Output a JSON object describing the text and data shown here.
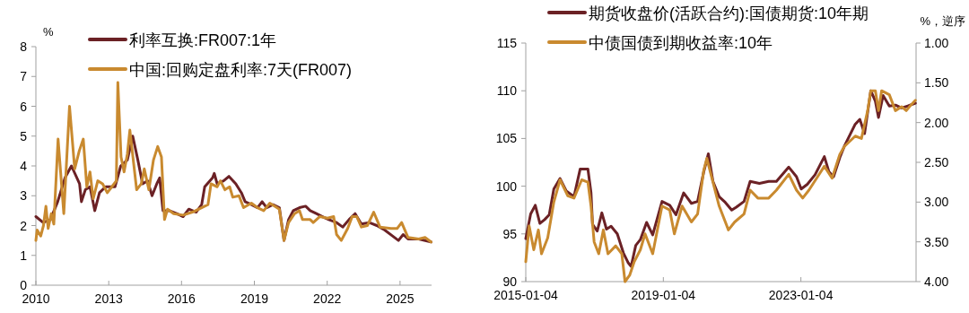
{
  "chart_data": [
    {
      "type": "line",
      "ylabel": "%",
      "legend": "top left",
      "xlim": [
        "2010-01-01",
        "2026-04-20"
      ],
      "xticks": [
        {
          "value": "2010-01-01",
          "label": "2010"
        },
        {
          "value": "2013-01-01",
          "label": "2013"
        },
        {
          "value": "2016-01-01",
          "label": "2016"
        },
        {
          "value": "2019-01-01",
          "label": "2019"
        },
        {
          "value": "2022-01-01",
          "label": "2022"
        },
        {
          "value": "2025-01-01",
          "label": "2025"
        }
      ],
      "ylim": [
        0,
        8
      ],
      "yticks": [
        0,
        1,
        2,
        3,
        4,
        5,
        6,
        7,
        8
      ],
      "series": [
        {
          "name": "利率互换:FR007:1年",
          "color": "#6b2125",
          "x": [
            "2010-01-01",
            "2010-04-20",
            "2010-08-08",
            "2010-11-25",
            "2011-03-15",
            "2011-06-20",
            "2011-10-20",
            "2011-11-17",
            "2012-01-15",
            "2012-03-25",
            "2012-06-05",
            "2012-08-15",
            "2012-11-15",
            "2013-04-05",
            "2013-07-01",
            "2013-10-08",
            "2013-12-28",
            "2014-03-15",
            "2014-05-25",
            "2014-08-08",
            "2014-10-15",
            "2014-12-25",
            "2015-02-06",
            "2015-03-28",
            "2015-07-01",
            "2015-10-20",
            "2016-01-25",
            "2016-04-20",
            "2016-08-08",
            "2016-10-30",
            "2016-12-15",
            "2017-04-12",
            "2017-05-08",
            "2017-06-20",
            "2017-09-25",
            "2017-12-15",
            "2018-03-28",
            "2018-06-20",
            "2018-08-15",
            "2018-11-17",
            "2019-02-17",
            "2019-04-28",
            "2019-07-05",
            "2019-10-08",
            "2020-01-12",
            "2020-03-22",
            "2020-05-30",
            "2020-08-08",
            "2020-11-10",
            "2021-02-10",
            "2021-04-20",
            "2021-07-22",
            "2021-10-22",
            "2022-01-25",
            "2022-05-22",
            "2022-08-22",
            "2022-11-25",
            "2023-02-25",
            "2023-05-30",
            "2023-09-25",
            "2024-01-18",
            "2024-05-15",
            "2024-09-10",
            "2024-12-08",
            "2025-02-17",
            "2025-05-01",
            "2025-10-08",
            "2026-04-12"
          ],
          "values": [
            2.3,
            2.1,
            2.2,
            2.8,
            3.6,
            4.0,
            3.4,
            2.8,
            3.2,
            3.3,
            2.5,
            3.1,
            3.3,
            3.3,
            4.0,
            4.2,
            5.0,
            4.2,
            3.4,
            3.5,
            3.0,
            3.4,
            3.6,
            2.5,
            2.5,
            2.4,
            2.3,
            2.55,
            2.45,
            2.7,
            3.3,
            3.6,
            3.75,
            3.4,
            3.5,
            3.65,
            3.4,
            3.1,
            2.8,
            2.7,
            2.6,
            2.8,
            2.6,
            2.7,
            2.6,
            1.5,
            2.2,
            2.5,
            2.6,
            2.65,
            2.5,
            2.4,
            2.3,
            2.2,
            2.1,
            1.95,
            2.2,
            2.4,
            2.05,
            2.1,
            2.0,
            1.85,
            1.65,
            1.5,
            1.7,
            1.55,
            1.55,
            1.45
          ]
        },
        {
          "name": "中国:回购定盘利率:7天(FR007)",
          "color": "#c98a2f",
          "x": [
            "2010-01-01",
            "2010-01-20",
            "2010-03-15",
            "2010-04-25",
            "2010-06-01",
            "2010-07-05",
            "2010-08-20",
            "2010-09-28",
            "2010-12-01",
            "2011-02-25",
            "2011-05-22",
            "2011-08-08",
            "2011-10-15",
            "2011-12-15",
            "2012-02-06",
            "2012-03-25",
            "2012-05-12",
            "2012-07-20",
            "2012-10-01",
            "2012-12-10",
            "2013-02-17",
            "2013-04-25",
            "2013-05-18",
            "2013-07-05",
            "2013-08-20",
            "2013-10-08",
            "2013-11-15",
            "2014-02-25",
            "2014-05-05",
            "2014-06-20",
            "2014-08-28",
            "2014-11-05",
            "2015-01-08",
            "2015-03-05",
            "2015-04-20",
            "2015-06-05",
            "2015-09-05",
            "2016-01-25",
            "2016-06-12",
            "2016-10-30",
            "2017-02-02",
            "2017-03-20",
            "2017-06-20",
            "2017-08-08",
            "2017-10-15",
            "2017-12-25",
            "2018-02-10",
            "2018-05-15",
            "2018-07-22",
            "2018-11-17",
            "2019-02-17",
            "2019-05-22",
            "2019-08-22",
            "2020-01-12",
            "2020-03-22",
            "2020-05-30",
            "2020-08-28",
            "2020-11-10",
            "2020-12-25",
            "2021-04-20",
            "2021-06-05",
            "2021-09-10",
            "2022-01-05",
            "2022-04-08",
            "2022-05-22",
            "2022-08-01",
            "2022-11-05",
            "2023-01-12",
            "2023-03-22",
            "2023-05-30",
            "2023-08-28",
            "2023-12-01",
            "2024-03-05",
            "2024-08-18",
            "2024-11-17",
            "2025-01-25",
            "2025-05-01",
            "2025-10-08",
            "2026-01-12",
            "2026-04-12"
          ],
          "values": [
            1.5,
            1.85,
            1.65,
            2.0,
            2.65,
            1.9,
            2.4,
            2.05,
            4.9,
            2.4,
            6.0,
            3.9,
            4.5,
            4.9,
            3.3,
            3.8,
            2.9,
            3.5,
            3.4,
            3.1,
            3.3,
            3.5,
            6.8,
            4.3,
            3.8,
            4.4,
            5.2,
            3.2,
            3.4,
            3.9,
            3.2,
            4.2,
            4.65,
            4.3,
            2.2,
            2.55,
            2.4,
            2.35,
            2.45,
            2.6,
            2.7,
            3.4,
            3.3,
            3.5,
            3.2,
            3.3,
            2.95,
            3.0,
            2.6,
            2.75,
            2.6,
            2.5,
            2.75,
            2.55,
            1.5,
            2.1,
            2.4,
            2.5,
            2.2,
            2.2,
            2.1,
            2.3,
            2.25,
            2.3,
            1.7,
            1.5,
            1.9,
            2.3,
            2.3,
            1.95,
            2.0,
            2.45,
            1.95,
            1.9,
            1.9,
            2.1,
            1.6,
            1.55,
            1.6,
            1.45
          ]
        }
      ]
    },
    {
      "type": "line",
      "y2label": "%，逆序",
      "legend": "top left",
      "xlim": [
        "2015-01-04",
        "2026-05-11"
      ],
      "xticks": [
        {
          "value": "2015-01-04",
          "label": "2015-01-04"
        },
        {
          "value": "2019-01-04",
          "label": "2019-01-04"
        },
        {
          "value": "2023-01-04",
          "label": "2023-01-04"
        }
      ],
      "ylim": [
        90,
        115
      ],
      "yticks": [
        90,
        95,
        100,
        105,
        110,
        115
      ],
      "y2lim": [
        4,
        1
      ],
      "y2ticks": [
        {
          "value": 1,
          "label": "1.00"
        },
        {
          "value": 1.5,
          "label": "1.50"
        },
        {
          "value": 2,
          "label": "2.00"
        },
        {
          "value": 2.5,
          "label": "2.50"
        },
        {
          "value": 3,
          "label": "3.00"
        },
        {
          "value": 3.5,
          "label": "3.50"
        },
        {
          "value": 4,
          "label": "4.00"
        }
      ],
      "series": [
        {
          "name": "期货收盘价(活跃合约):国债期货:10年期",
          "color": "#6b2125",
          "x": [
            "2015-01-04",
            "2015-02-25",
            "2015-04-15",
            "2015-06-03",
            "2015-07-23",
            "2015-09-10",
            "2015-10-29",
            "2016-01-03",
            "2016-03-09",
            "2016-05-30",
            "2016-08-04",
            "2016-10-25",
            "2016-11-27",
            "2016-12-13",
            "2017-02-01",
            "2017-03-22",
            "2017-05-10",
            "2017-06-28",
            "2017-09-02",
            "2017-11-06",
            "2017-12-25",
            "2018-01-27",
            "2018-03-17",
            "2018-05-05",
            "2018-07-10",
            "2018-09-13",
            "2018-12-21",
            "2019-03-13",
            "2019-05-18",
            "2019-08-08",
            "2019-10-29",
            "2020-01-03",
            "2020-03-08",
            "2020-04-26",
            "2020-06-14",
            "2020-08-19",
            "2020-10-23",
            "2020-12-30",
            "2021-02-17",
            "2021-05-10",
            "2021-07-14",
            "2021-10-20",
            "2022-01-27",
            "2022-04-19",
            "2022-08-28",
            "2022-11-18",
            "2023-01-07",
            "2023-03-13",
            "2023-06-03",
            "2023-09-10",
            "2023-10-29",
            "2023-12-17",
            "2024-02-21",
            "2024-04-10",
            "2024-08-03",
            "2024-09-21",
            "2024-11-10",
            "2025-01-15",
            "2025-03-05",
            "2025-04-07",
            "2025-05-26",
            "2025-07-31",
            "2025-10-04",
            "2025-12-08",
            "2026-02-12",
            "2026-05-04"
          ],
          "values": [
            94.5,
            97.1,
            98.0,
            96.1,
            96.5,
            97.0,
            99.7,
            100.8,
            99.5,
            98.9,
            101.8,
            101.8,
            99.3,
            96.0,
            95.3,
            97.2,
            95.5,
            95.8,
            95.0,
            93.0,
            92.0,
            91.6,
            93.8,
            94.4,
            96.2,
            94.9,
            98.4,
            98.0,
            97.0,
            99.3,
            98.2,
            98.4,
            101.5,
            103.4,
            100.5,
            98.9,
            98.3,
            97.5,
            97.8,
            98.4,
            100.5,
            100.3,
            100.5,
            100.5,
            102.0,
            101.0,
            99.7,
            100.2,
            101.2,
            103.1,
            101.5,
            101.0,
            103.0,
            104.2,
            106.5,
            107.0,
            105.5,
            110.0,
            108.9,
            107.2,
            109.5,
            108.4,
            108.5,
            108.2,
            108.4,
            108.7
          ]
        },
        {
          "name": "中债国债到期收益率:10年",
          "color": "#c98a2f",
          "axis": "y2",
          "x": [
            "2015-01-04",
            "2015-02-09",
            "2015-03-30",
            "2015-05-18",
            "2015-06-20",
            "2015-08-25",
            "2015-10-29",
            "2016-01-03",
            "2016-03-25",
            "2016-05-30",
            "2016-08-20",
            "2016-10-25",
            "2016-11-27",
            "2016-12-30",
            "2017-02-17",
            "2017-04-07",
            "2017-05-26",
            "2017-08-16",
            "2017-10-20",
            "2017-11-23",
            "2018-01-11",
            "2018-03-01",
            "2018-05-05",
            "2018-06-24",
            "2018-09-13",
            "2018-12-21",
            "2019-03-13",
            "2019-05-01",
            "2019-07-22",
            "2019-10-29",
            "2020-01-03",
            "2020-03-08",
            "2020-04-10",
            "2020-06-14",
            "2020-08-19",
            "2020-11-25",
            "2021-01-31",
            "2021-05-10",
            "2021-07-14",
            "2021-10-04",
            "2022-01-27",
            "2022-04-19",
            "2022-08-28",
            "2022-11-18",
            "2023-01-23",
            "2023-03-30",
            "2023-06-20",
            "2023-09-10",
            "2023-12-01",
            "2024-02-21",
            "2024-04-10",
            "2024-08-03",
            "2024-10-08",
            "2024-12-13",
            "2025-01-15",
            "2025-03-05",
            "2025-04-07",
            "2025-05-10",
            "2025-07-31",
            "2025-10-04",
            "2025-12-08",
            "2026-01-27",
            "2026-03-17",
            "2026-05-04"
          ],
          "values": [
            3.75,
            3.3,
            3.6,
            3.35,
            3.65,
            3.45,
            3.0,
            2.72,
            2.92,
            2.95,
            2.72,
            2.75,
            3.05,
            3.5,
            3.65,
            3.35,
            3.65,
            3.55,
            3.65,
            4.0,
            3.92,
            3.75,
            3.6,
            3.4,
            3.65,
            3.05,
            3.1,
            3.4,
            3.05,
            3.25,
            3.15,
            2.6,
            2.45,
            2.75,
            3.05,
            3.35,
            3.25,
            3.15,
            2.85,
            2.95,
            2.95,
            2.85,
            2.65,
            2.85,
            2.95,
            2.85,
            2.7,
            2.55,
            2.7,
            2.4,
            2.3,
            2.17,
            2.2,
            1.85,
            1.6,
            1.6,
            1.85,
            1.6,
            1.65,
            1.85,
            1.8,
            1.85,
            1.78,
            1.72
          ]
        }
      ]
    }
  ]
}
